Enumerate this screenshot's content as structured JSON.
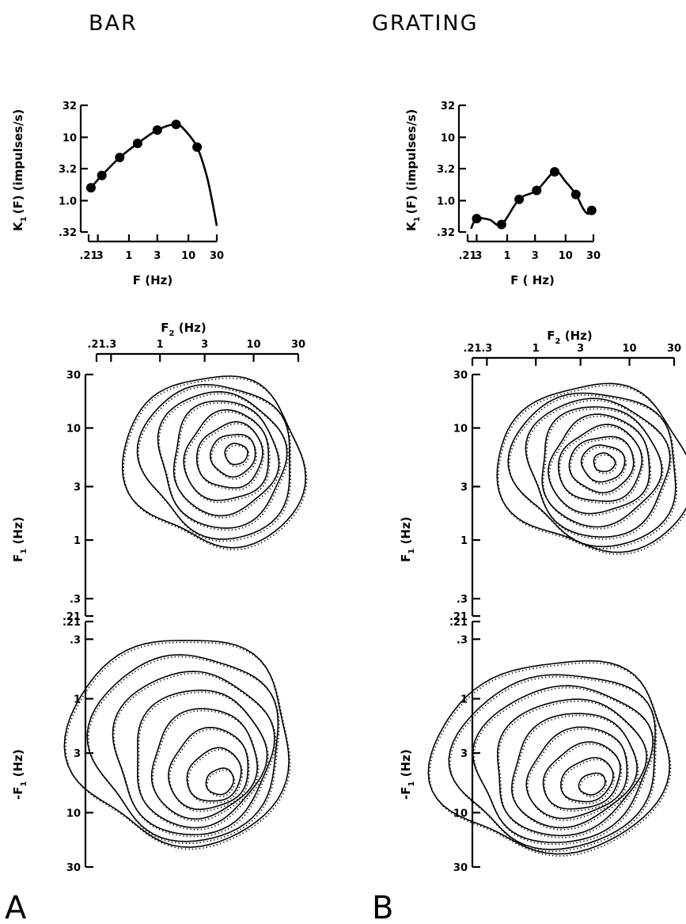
{
  "headings": {
    "left": "BAR",
    "right": "GRATING"
  },
  "panel_labels": {
    "left": "A",
    "right": "B"
  },
  "chart_data": [
    {
      "id": "bar_first_order",
      "type": "line",
      "ylabel_main": "K",
      "ylabel_sub": "1",
      "ylabel_rest": "(F)  (impulses/s)",
      "xlabel": "F (Hz)",
      "xscale": "log",
      "yscale": "log",
      "xlim": [
        0.21,
        30
      ],
      "ylim": [
        0.32,
        32
      ],
      "xticks": [
        0.21,
        0.3,
        1,
        3,
        10,
        30
      ],
      "xtick_labels": [
        ".21",
        ".3",
        "1",
        "3",
        "10",
        "30"
      ],
      "yticks": [
        0.32,
        1.0,
        3.2,
        10,
        32
      ],
      "ytick_labels": [
        ".32",
        "1.0",
        "3.2",
        "10",
        "32"
      ],
      "points": [
        {
          "x": 0.23,
          "y": 1.6
        },
        {
          "x": 0.35,
          "y": 2.5
        },
        {
          "x": 0.7,
          "y": 4.8
        },
        {
          "x": 1.4,
          "y": 8.0
        },
        {
          "x": 3.0,
          "y": 13.0
        },
        {
          "x": 6.2,
          "y": 16.0
        },
        {
          "x": 14.0,
          "y": 7.0
        }
      ],
      "curve": [
        {
          "x": 0.23,
          "y": 1.6
        },
        {
          "x": 0.35,
          "y": 2.5
        },
        {
          "x": 0.7,
          "y": 4.8
        },
        {
          "x": 1.4,
          "y": 8.0
        },
        {
          "x": 3.0,
          "y": 13.0
        },
        {
          "x": 6.2,
          "y": 16.0
        },
        {
          "x": 9.0,
          "y": 12.5
        },
        {
          "x": 14.0,
          "y": 7.0
        },
        {
          "x": 20.0,
          "y": 2.6
        },
        {
          "x": 25.0,
          "y": 1.0
        },
        {
          "x": 30.0,
          "y": 0.4
        }
      ]
    },
    {
      "id": "grating_first_order",
      "type": "line",
      "ylabel_main": "K",
      "ylabel_sub": "1",
      "ylabel_rest": "(F) (impulses/s)",
      "xlabel": "F ( Hz)",
      "xscale": "log",
      "yscale": "log",
      "xlim": [
        0.21,
        30
      ],
      "ylim": [
        0.32,
        32
      ],
      "xticks": [
        0.21,
        0.3,
        1,
        3,
        10,
        30
      ],
      "xtick_labels": [
        ".21",
        ".3",
        "1",
        "3",
        "10",
        "30"
      ],
      "yticks": [
        0.32,
        1.0,
        3.2,
        10,
        32
      ],
      "ytick_labels": [
        ".32",
        "1.0",
        "3.2",
        "10",
        "32"
      ],
      "points": [
        {
          "x": 0.3,
          "y": 0.52
        },
        {
          "x": 0.8,
          "y": 0.42
        },
        {
          "x": 1.6,
          "y": 1.05
        },
        {
          "x": 3.2,
          "y": 1.45
        },
        {
          "x": 6.5,
          "y": 2.85
        },
        {
          "x": 15.0,
          "y": 1.25
        },
        {
          "x": 28.0,
          "y": 0.7
        }
      ],
      "curve": [
        {
          "x": 0.24,
          "y": 0.36
        },
        {
          "x": 0.3,
          "y": 0.52
        },
        {
          "x": 0.5,
          "y": 0.5
        },
        {
          "x": 0.8,
          "y": 0.42
        },
        {
          "x": 1.6,
          "y": 1.05
        },
        {
          "x": 3.2,
          "y": 1.45
        },
        {
          "x": 6.5,
          "y": 2.85
        },
        {
          "x": 10.0,
          "y": 2.0
        },
        {
          "x": 15.0,
          "y": 1.25
        },
        {
          "x": 20.0,
          "y": 0.75
        },
        {
          "x": 24.0,
          "y": 0.62
        },
        {
          "x": 28.0,
          "y": 0.7
        }
      ]
    },
    {
      "id": "bar_second_order",
      "type": "contour",
      "xlabel_main": "F",
      "xlabel_sub": "2",
      "xlabel_rest": " (Hz)",
      "upper_ylabel_main": "F",
      "upper_ylabel_sub": "1",
      "upper_ylabel_rest": " (Hz)",
      "lower_ylabel_main": "-F",
      "lower_ylabel_sub": "1",
      "lower_ylabel_rest": " (Hz)",
      "xscale": "log",
      "xticks": [
        0.21,
        0.3,
        1,
        3,
        10,
        30
      ],
      "xtick_labels": [
        ".21",
        ".3",
        "1",
        "3",
        "10",
        "30"
      ],
      "upper_yticks": [
        30,
        10,
        3,
        1,
        0.3,
        0.21
      ],
      "upper_ytick_labels": [
        "30",
        "10",
        "3",
        "1",
        ".3",
        ".21"
      ],
      "lower_yticks": [
        0.21,
        0.3,
        1,
        3,
        10,
        30
      ],
      "lower_ytick_labels": [
        ".21",
        ".3",
        "1",
        "3",
        "10",
        "30"
      ],
      "upper_peak": {
        "F2": 7.0,
        "F1": 6.0
      },
      "lower_peak": {
        "F2": 5.0,
        "minus_F1": 6.0
      },
      "upper_contour_count": 8,
      "lower_contour_count": 8
    },
    {
      "id": "grating_second_order",
      "type": "contour",
      "xlabel_main": "F",
      "xlabel_sub": "2",
      "xlabel_rest": " (Hz)",
      "upper_ylabel_main": "F",
      "upper_ylabel_sub": "1",
      "upper_ylabel_rest": " (Hz)",
      "lower_ylabel_main": "-F",
      "lower_ylabel_sub": "1",
      "lower_ylabel_rest": " (Hz)",
      "xscale": "log",
      "xticks": [
        0.21,
        0.3,
        1,
        3,
        10,
        30
      ],
      "xtick_labels": [
        ".21",
        ".3",
        "1",
        "3",
        "10",
        "30"
      ],
      "upper_yticks": [
        30,
        10,
        3,
        1,
        0.3,
        0.21
      ],
      "upper_ytick_labels": [
        "30",
        "10",
        "3",
        "1",
        ".3",
        ".21"
      ],
      "lower_yticks": [
        0.21,
        0.3,
        1,
        3,
        10,
        30
      ],
      "lower_ytick_labels": [
        ".21",
        ".3",
        "1",
        "3",
        "10",
        "30"
      ],
      "upper_peak": {
        "F2": 5.5,
        "F1": 5.0
      },
      "lower_peak": {
        "F2": 4.5,
        "minus_F1": 6.0
      },
      "upper_contour_count": 9,
      "lower_contour_count": 9
    }
  ]
}
